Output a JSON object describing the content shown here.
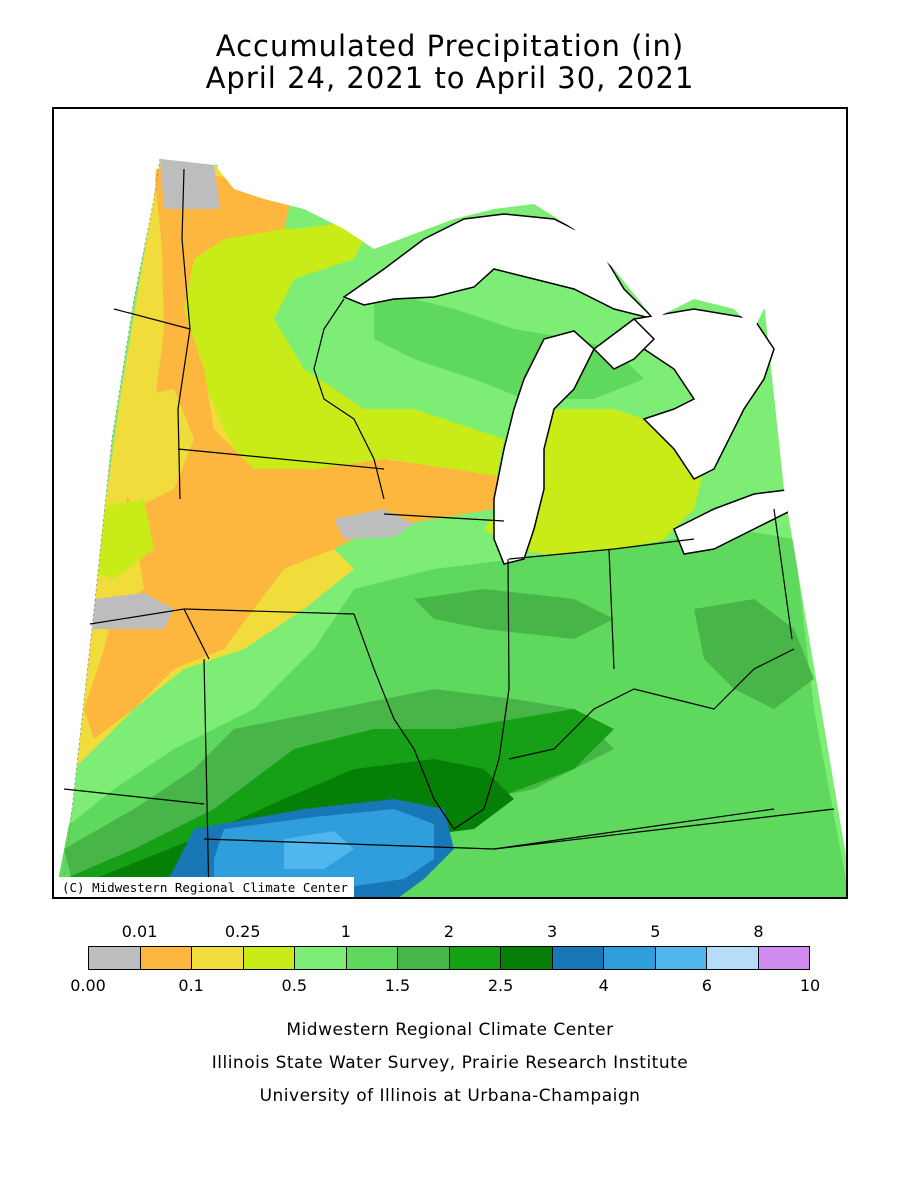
{
  "title": {
    "line1": "Accumulated Precipitation (in)",
    "line2": "April 24, 2021 to April 30, 2021"
  },
  "map": {
    "credit": "(C) Midwestern Regional Climate Center",
    "lake_color": "#ffffff"
  },
  "legend": {
    "colors": [
      "#bdbdbd",
      "#fdb73e",
      "#f0dd3c",
      "#c9ec18",
      "#7ded76",
      "#5ed95e",
      "#47b547",
      "#16a016",
      "#067f06",
      "#1877b7",
      "#2e9edc",
      "#4fb6ee",
      "#b7dcf8",
      "#cf8bee"
    ],
    "top_labels": [
      "0.01",
      "0.25",
      "1",
      "2",
      "3",
      "5",
      "8"
    ],
    "bottom_labels": [
      "0.00",
      "0.1",
      "0.5",
      "1.5",
      "2.5",
      "4",
      "6",
      "10"
    ]
  },
  "footer": {
    "line1": "Midwestern Regional Climate Center",
    "line2": "Illinois State Water Survey, Prairie Research Institute",
    "line3": "University of Illinois at Urbana-Champaign"
  }
}
